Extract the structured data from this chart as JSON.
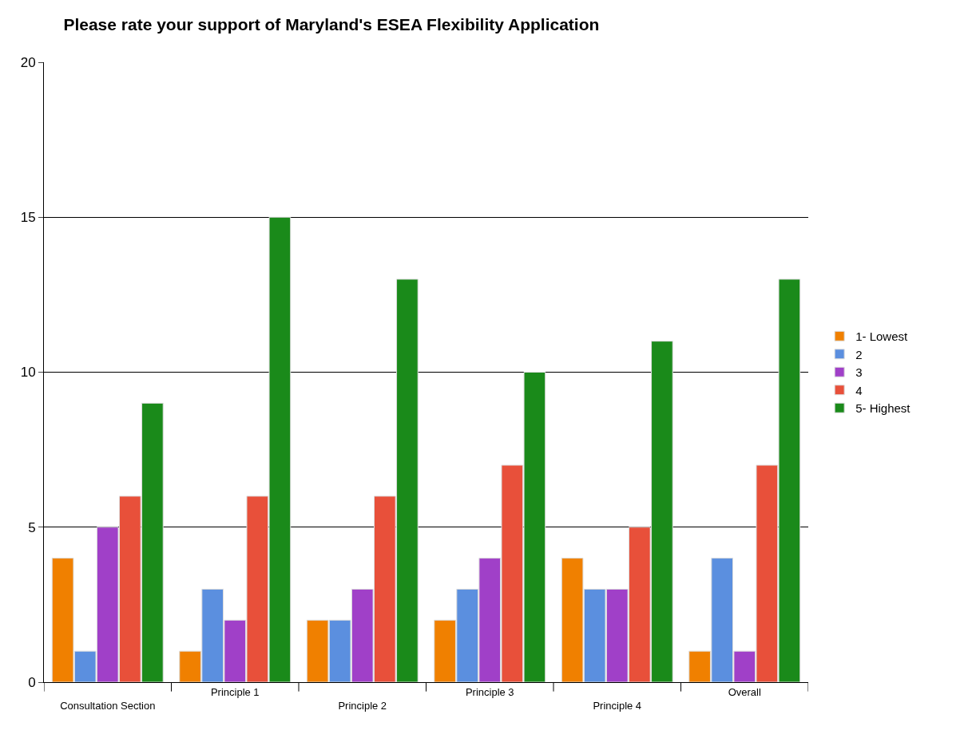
{
  "chart_data": {
    "type": "bar",
    "title": "Please rate your support of Maryland's ESEA Flexibility Application",
    "categories": [
      "Consultation Section",
      "Principle 1",
      "Principle 2",
      "Principle 3",
      "Principle 4",
      "Overall"
    ],
    "series": [
      {
        "name": "1- Lowest",
        "color": "#f08000",
        "values": [
          4,
          1,
          2,
          2,
          4,
          1
        ]
      },
      {
        "name": "2",
        "color": "#5b8fdf",
        "values": [
          1,
          3,
          2,
          3,
          3,
          4
        ]
      },
      {
        "name": "3",
        "color": "#a040c8",
        "values": [
          5,
          2,
          3,
          4,
          3,
          1
        ]
      },
      {
        "name": "4",
        "color": "#e8503a",
        "values": [
          6,
          6,
          6,
          7,
          5,
          7
        ]
      },
      {
        "name": "5- Highest",
        "color": "#1a8a1a",
        "values": [
          9,
          15,
          13,
          10,
          11,
          13
        ]
      }
    ],
    "ylim": [
      0,
      20
    ],
    "yticks": [
      0,
      5,
      10,
      15,
      20
    ],
    "grid": "y",
    "legend": "right"
  }
}
